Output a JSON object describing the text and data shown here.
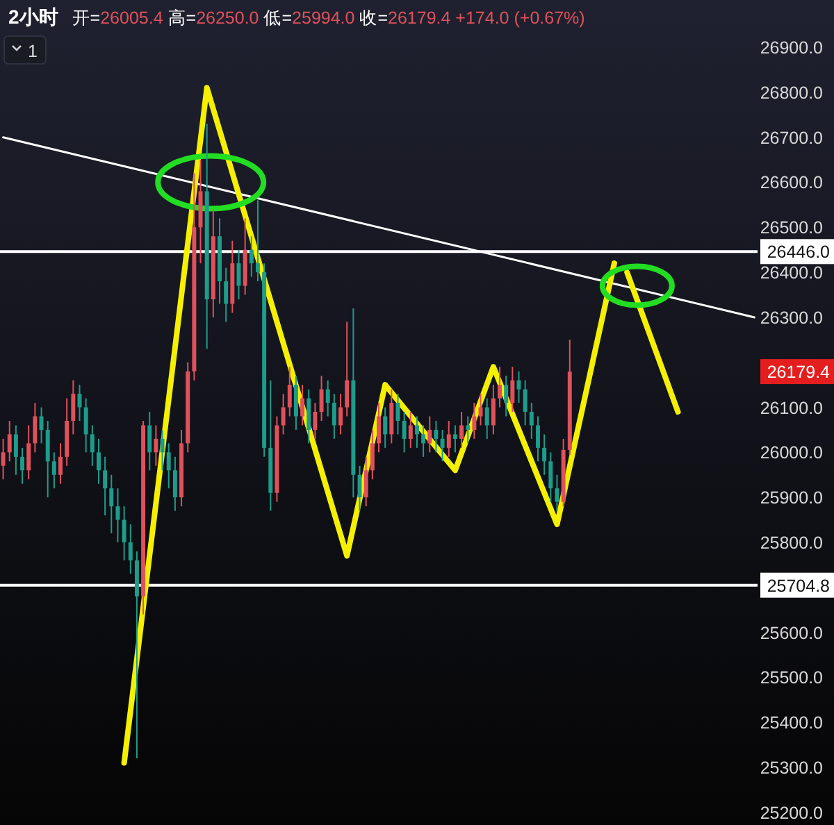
{
  "chart_data": {
    "type": "candlestick",
    "title": "2小时",
    "subtitle": "开=26005.4 高=26250.0 低=25994.0 收=26179.4 +174.0 (+0.67%)",
    "categories": [
      null,
      null,
      null,
      null,
      null,
      null,
      null,
      null,
      null,
      null,
      null,
      null,
      null,
      null,
      null,
      null,
      null,
      null,
      null,
      null,
      null,
      null,
      null,
      null,
      null,
      null,
      null,
      null,
      null,
      null,
      null,
      null,
      null,
      null,
      null,
      null,
      null,
      null,
      null,
      null,
      null,
      null,
      null,
      null,
      null,
      null,
      null,
      null,
      null,
      null,
      null,
      null,
      null,
      null,
      null,
      null,
      null,
      null,
      null,
      null,
      null,
      null,
      null,
      null,
      null,
      null,
      null,
      null,
      null,
      null,
      null,
      null,
      null,
      null,
      null,
      null,
      null,
      null,
      null,
      null,
      null,
      null,
      null,
      null,
      null,
      null,
      null,
      null,
      null,
      null,
      null,
      null,
      null,
      null,
      null,
      null,
      null,
      null,
      null,
      null,
      null,
      null,
      null,
      null,
      null,
      null,
      null,
      null,
      null,
      null,
      null,
      null,
      null,
      null,
      null,
      null,
      null,
      null,
      null
    ],
    "ohlc": [
      [
        25970,
        26030,
        25940,
        26000
      ],
      [
        26000,
        26070,
        25980,
        26040
      ],
      [
        26040,
        26060,
        25950,
        25990
      ],
      [
        25990,
        26010,
        25930,
        25960
      ],
      [
        25960,
        26060,
        25940,
        26020
      ],
      [
        26020,
        26110,
        26000,
        26080
      ],
      [
        26080,
        26100,
        26020,
        26050
      ],
      [
        26050,
        26070,
        25900,
        25980
      ],
      [
        25980,
        26000,
        25920,
        25950
      ],
      [
        25950,
        26020,
        25930,
        25990
      ],
      [
        25990,
        26120,
        25970,
        26070
      ],
      [
        26070,
        26160,
        26040,
        26130
      ],
      [
        26130,
        26150,
        26070,
        26100
      ],
      [
        26100,
        26120,
        26000,
        26040
      ],
      [
        26040,
        26060,
        25970,
        26000
      ],
      [
        26000,
        26030,
        25930,
        25960
      ],
      [
        25960,
        25990,
        25860,
        25920
      ],
      [
        25920,
        25950,
        25820,
        25880
      ],
      [
        25880,
        25920,
        25800,
        25850
      ],
      [
        25850,
        25880,
        25760,
        25800
      ],
      [
        25800,
        25840,
        25730,
        25760
      ],
      [
        25760,
        25780,
        25320,
        25680
      ],
      [
        25680,
        26070,
        25640,
        26060
      ],
      [
        26060,
        26090,
        25960,
        26000
      ],
      [
        26000,
        26060,
        25970,
        26030
      ],
      [
        26030,
        26050,
        25960,
        26000
      ],
      [
        26000,
        26020,
        25920,
        25960
      ],
      [
        25960,
        25990,
        25870,
        25900
      ],
      [
        25900,
        26050,
        25880,
        26020
      ],
      [
        26020,
        26200,
        26000,
        26180
      ],
      [
        26180,
        26620,
        26160,
        26500
      ],
      [
        26500,
        26650,
        26420,
        26580
      ],
      [
        26580,
        26730,
        26230,
        26340
      ],
      [
        26340,
        26540,
        26300,
        26480
      ],
      [
        26480,
        26520,
        26330,
        26380
      ],
      [
        26380,
        26410,
        26290,
        26330
      ],
      [
        26330,
        26470,
        26310,
        26420
      ],
      [
        26420,
        26450,
        26340,
        26370
      ],
      [
        26370,
        26520,
        26350,
        26450
      ],
      [
        26450,
        26480,
        26390,
        26420
      ],
      [
        26420,
        26560,
        26380,
        26400
      ],
      [
        26400,
        26420,
        25990,
        26010
      ],
      [
        26010,
        26160,
        25870,
        25910
      ],
      [
        25910,
        26080,
        25890,
        26060
      ],
      [
        26060,
        26130,
        26040,
        26100
      ],
      [
        26100,
        26190,
        26080,
        26150
      ],
      [
        26150,
        26170,
        26050,
        26080
      ],
      [
        26080,
        26150,
        26060,
        26120
      ],
      [
        26120,
        26140,
        26020,
        26050
      ],
      [
        26050,
        26110,
        26030,
        26090
      ],
      [
        26090,
        26170,
        26070,
        26140
      ],
      [
        26140,
        26160,
        26080,
        26110
      ],
      [
        26110,
        26130,
        26030,
        26060
      ],
      [
        26060,
        26130,
        26040,
        26100
      ],
      [
        26100,
        26290,
        26080,
        26160
      ],
      [
        26160,
        26320,
        25900,
        25950
      ],
      [
        25950,
        25970,
        25870,
        25900
      ],
      [
        25900,
        25990,
        25880,
        25960
      ],
      [
        25960,
        26050,
        25940,
        26020
      ],
      [
        26020,
        26110,
        26000,
        26080
      ],
      [
        26080,
        26100,
        26010,
        26040
      ],
      [
        26040,
        26140,
        26020,
        26110
      ],
      [
        26110,
        26130,
        26040,
        26070
      ],
      [
        26070,
        26090,
        26000,
        26030
      ],
      [
        26030,
        26090,
        26010,
        26060
      ],
      [
        26060,
        26080,
        26010,
        26040
      ],
      [
        26040,
        26060,
        25990,
        26020
      ],
      [
        26020,
        26080,
        26000,
        26050
      ],
      [
        26050,
        26070,
        26000,
        26030
      ],
      [
        26030,
        26050,
        25980,
        26010
      ],
      [
        26010,
        26070,
        25990,
        26040
      ],
      [
        26040,
        26060,
        26000,
        26030
      ],
      [
        26030,
        26090,
        26010,
        26060
      ],
      [
        26060,
        26080,
        26020,
        26050
      ],
      [
        26050,
        26110,
        26030,
        26080
      ],
      [
        26080,
        26130,
        26060,
        26100
      ],
      [
        26100,
        26120,
        26030,
        26060
      ],
      [
        26060,
        26150,
        26040,
        26120
      ],
      [
        26120,
        26190,
        26100,
        26150
      ],
      [
        26150,
        26170,
        26080,
        26110
      ],
      [
        26110,
        26190,
        26090,
        26160
      ],
      [
        26160,
        26180,
        26110,
        26140
      ],
      [
        26140,
        26160,
        26060,
        26090
      ],
      [
        26090,
        26110,
        26030,
        26060
      ],
      [
        26060,
        26080,
        25980,
        26010
      ],
      [
        26010,
        26040,
        25950,
        25980
      ],
      [
        25980,
        26000,
        25890,
        25920
      ],
      [
        25920,
        25950,
        25870,
        25890
      ],
      [
        25890,
        26030,
        25880,
        26005.4
      ],
      [
        26005.4,
        26250,
        25994,
        26179.4
      ],
      null,
      null,
      null,
      null,
      null,
      null,
      null,
      null,
      null,
      null,
      null,
      null,
      null,
      null,
      null,
      null,
      null,
      null,
      null,
      null,
      null,
      null,
      null,
      null,
      null,
      null,
      null,
      null,
      null
    ],
    "colors": [
      "#e0515b",
      "#e0515b",
      "#1e9c8b",
      "#1e9c8b",
      "#e0515b",
      "#e0515b",
      "#1e9c8b",
      "#1e9c8b",
      "#1e9c8b",
      "#e0515b",
      "#e0515b",
      "#e0515b",
      "#1e9c8b",
      "#1e9c8b",
      "#1e9c8b",
      "#1e9c8b",
      "#1e9c8b",
      "#1e9c8b",
      "#1e9c8b",
      "#1e9c8b",
      "#1e9c8b",
      "#1e9c8b",
      "#e0515b",
      "#1e9c8b",
      "#e0515b",
      "#1e9c8b",
      "#1e9c8b",
      "#1e9c8b",
      "#e0515b",
      "#e0515b",
      "#e0515b",
      "#e0515b",
      "#1e9c8b",
      "#e0515b",
      "#1e9c8b",
      "#1e9c8b",
      "#e0515b",
      "#1e9c8b",
      "#e0515b",
      "#1e9c8b",
      "#1e9c8b",
      "#1e9c8b",
      "#1e9c8b",
      "#e0515b",
      "#e0515b",
      "#e0515b",
      "#1e9c8b",
      "#e0515b",
      "#1e9c8b",
      "#e0515b",
      "#e0515b",
      "#1e9c8b",
      "#1e9c8b",
      "#e0515b",
      "#e0515b",
      "#1e9c8b",
      "#1e9c8b",
      "#e0515b",
      "#e0515b",
      "#e0515b",
      "#1e9c8b",
      "#e0515b",
      "#1e9c8b",
      "#1e9c8b",
      "#e0515b",
      "#1e9c8b",
      "#1e9c8b",
      "#e0515b",
      "#1e9c8b",
      "#1e9c8b",
      "#e0515b",
      "#1e9c8b",
      "#e0515b",
      "#1e9c8b",
      "#e0515b",
      "#e0515b",
      "#1e9c8b",
      "#e0515b",
      "#e0515b",
      "#1e9c8b",
      "#e0515b",
      "#1e9c8b",
      "#1e9c8b",
      "#1e9c8b",
      "#1e9c8b",
      "#1e9c8b",
      "#1e9c8b",
      "#1e9c8b",
      "#e0515b",
      "#e0515b",
      null,
      null,
      null,
      null,
      null,
      null,
      null,
      null,
      null,
      null,
      null,
      null,
      null,
      null,
      null,
      null,
      null,
      null,
      null,
      null,
      null,
      null,
      null,
      null,
      null,
      null,
      null,
      null,
      null
    ],
    "series": [
      {
        "type": "line",
        "color": "#ffffff",
        "values": [
          26700,
          null,
          null,
          null,
          null,
          null,
          null,
          null,
          null,
          null,
          null,
          null,
          null,
          null,
          null,
          null,
          null,
          null,
          null,
          null,
          null,
          null,
          null,
          null,
          null,
          null,
          null,
          null,
          null,
          null,
          null,
          null,
          null,
          null,
          null,
          null,
          null,
          null,
          null,
          null,
          null,
          null,
          null,
          null,
          null,
          null,
          null,
          null,
          null,
          null,
          null,
          null,
          null,
          null,
          null,
          null,
          null,
          null,
          null,
          null,
          null,
          null,
          null,
          null,
          null,
          null,
          null,
          null,
          null,
          null,
          null,
          null,
          null,
          null,
          null,
          null,
          null,
          null,
          null,
          null,
          null,
          null,
          null,
          null,
          null,
          null,
          null,
          null,
          null,
          null,
          null,
          null,
          null,
          null,
          null,
          null,
          null,
          null,
          null,
          null,
          null,
          null,
          null,
          null,
          null,
          null,
          null,
          null,
          null,
          null,
          null,
          null,
          null,
          null,
          null,
          null,
          null,
          null,
          26300
        ]
      },
      {
        "type": "line",
        "color": "#f5f000",
        "values": [
          null,
          null,
          null,
          null,
          null,
          null,
          null,
          null,
          null,
          null,
          null,
          null,
          null,
          null,
          null,
          null,
          null,
          null,
          null,
          25310,
          null,
          null,
          null,
          null,
          null,
          null,
          null,
          null,
          null,
          null,
          null,
          null,
          26810,
          null,
          null,
          null,
          null,
          null,
          null,
          null,
          null,
          null,
          null,
          null,
          null,
          null,
          null,
          null,
          null,
          null,
          null,
          null,
          null,
          null,
          25770,
          null,
          null,
          null,
          null,
          null,
          26150,
          null,
          null,
          null,
          null,
          null,
          null,
          null,
          null,
          null,
          null,
          25960,
          null,
          null,
          null,
          null,
          null,
          26190,
          null,
          null,
          null,
          null,
          null,
          null,
          null,
          null,
          null,
          25840,
          null,
          null,
          null,
          null,
          null,
          null,
          null,
          null,
          26420,
          null,
          null,
          null,
          null,
          null,
          null,
          null,
          null,
          null,
          null,
          null,
          null,
          null,
          null,
          null,
          null,
          null,
          null,
          null,
          null,
          null,
          null
        ]
      },
      {
        "type": "line",
        "color": "#f5f000",
        "values": [
          null,
          null,
          null,
          null,
          null,
          null,
          null,
          null,
          null,
          null,
          null,
          null,
          null,
          null,
          null,
          null,
          null,
          null,
          null,
          null,
          null,
          null,
          null,
          null,
          null,
          null,
          null,
          null,
          null,
          null,
          null,
          null,
          null,
          null,
          null,
          null,
          null,
          null,
          null,
          null,
          null,
          null,
          null,
          null,
          null,
          null,
          null,
          null,
          null,
          null,
          null,
          null,
          null,
          null,
          null,
          null,
          null,
          null,
          null,
          null,
          null,
          null,
          null,
          null,
          null,
          null,
          null,
          null,
          null,
          null,
          null,
          null,
          null,
          null,
          null,
          null,
          null,
          null,
          null,
          null,
          null,
          null,
          null,
          null,
          null,
          null,
          null,
          null,
          null,
          null,
          null,
          null,
          null,
          null,
          null,
          null,
          null,
          null,
          26400,
          null,
          null,
          null,
          null,
          null,
          null,
          null,
          26090,
          null,
          null,
          null,
          null,
          null,
          null,
          null,
          null,
          null,
          null,
          null,
          null
        ]
      }
    ],
    "ref_lines": [
      {
        "axis": "y",
        "value": 26446.0,
        "label": "26446.0",
        "color": "#ffffff"
      },
      {
        "axis": "y",
        "value": 25704.8,
        "label": "25704.8",
        "color": "#ffffff"
      }
    ],
    "annotations": [
      "1",
      "26179.4"
    ],
    "ylim": [
      25172,
      27005
    ],
    "yticks": [
      {
        "value": 25200,
        "label": "25200.0"
      },
      {
        "value": 25300,
        "label": "25300.0"
      },
      {
        "value": 25400,
        "label": "25400.0"
      },
      {
        "value": 25500,
        "label": "25500.0"
      },
      {
        "value": 25600,
        "label": "25600.0"
      },
      {
        "value": 25800,
        "label": "25800.0"
      },
      {
        "value": 25900,
        "label": "25900.0"
      },
      {
        "value": 26000,
        "label": "26000.0"
      },
      {
        "value": 26100,
        "label": "26100.0"
      },
      {
        "value": 26300,
        "label": "26300.0"
      },
      {
        "value": 26400,
        "label": "26400.0"
      },
      {
        "value": 26500,
        "label": "26500.0"
      },
      {
        "value": 26600,
        "label": "26600.0"
      },
      {
        "value": 26700,
        "label": "26700.0"
      },
      {
        "value": 26800,
        "label": "26800.0"
      },
      {
        "value": 26900,
        "label": "26900.0"
      }
    ],
    "tick_labels": "y"
  }
}
